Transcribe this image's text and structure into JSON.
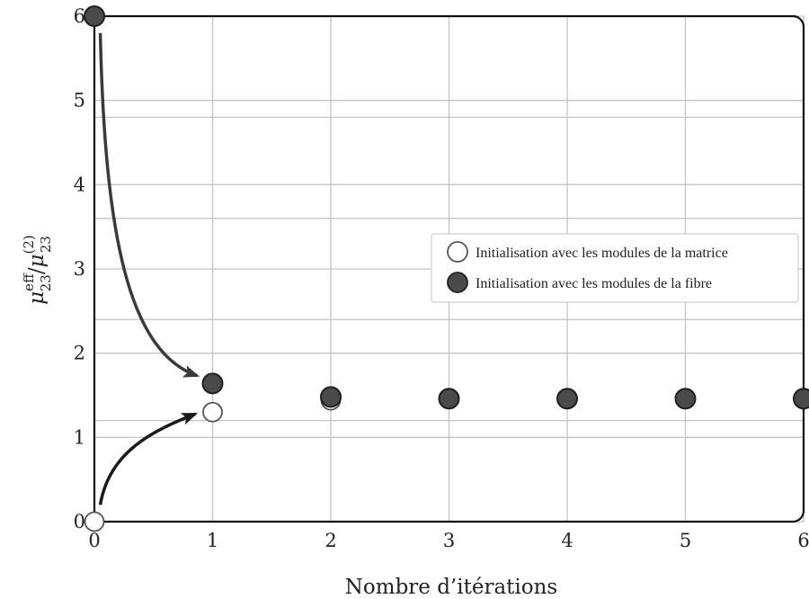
{
  "chart_data": {
    "type": "scatter",
    "xlabel": "Nombre d’itérations",
    "ylabel_main": "μ",
    "ylabel_num_sup": "eff",
    "ylabel_num_sub": "23",
    "ylabel_slash": "/",
    "ylabel_den_sup": "(2)",
    "ylabel_den_sub": "23",
    "xlim": [
      0,
      6
    ],
    "ylim": [
      0,
      6
    ],
    "x_ticks": [
      "0",
      "1",
      "2",
      "3",
      "4",
      "5",
      "6"
    ],
    "y_ticks": [
      "0",
      "1",
      "2",
      "3",
      "4",
      "5",
      "6"
    ],
    "grid": true,
    "legend_position": "center-right",
    "series": [
      {
        "name": "Initialisation avec les modules de la matrice",
        "marker": "open-circle",
        "color": "#555555",
        "x": [
          0,
          1,
          2,
          3,
          4,
          5,
          6
        ],
        "y": [
          0,
          1.3,
          1.44,
          1.46,
          1.46,
          1.46,
          1.46
        ]
      },
      {
        "name": "Initialisation avec les modules de la fibre",
        "marker": "filled-circle",
        "color": "#4a4a4a",
        "x": [
          0,
          1,
          2,
          3,
          4,
          5,
          6
        ],
        "y": [
          6,
          1.64,
          1.48,
          1.46,
          1.46,
          1.46,
          1.46
        ]
      }
    ],
    "annotations": [
      {
        "type": "arrow",
        "from": [
          0.05,
          5.8
        ],
        "to": [
          0.9,
          1.7
        ],
        "color": "#3a3a3a"
      },
      {
        "type": "arrow",
        "from": [
          0.05,
          0.2
        ],
        "to": [
          0.9,
          1.3
        ],
        "color": "#1a1a1a"
      }
    ]
  }
}
